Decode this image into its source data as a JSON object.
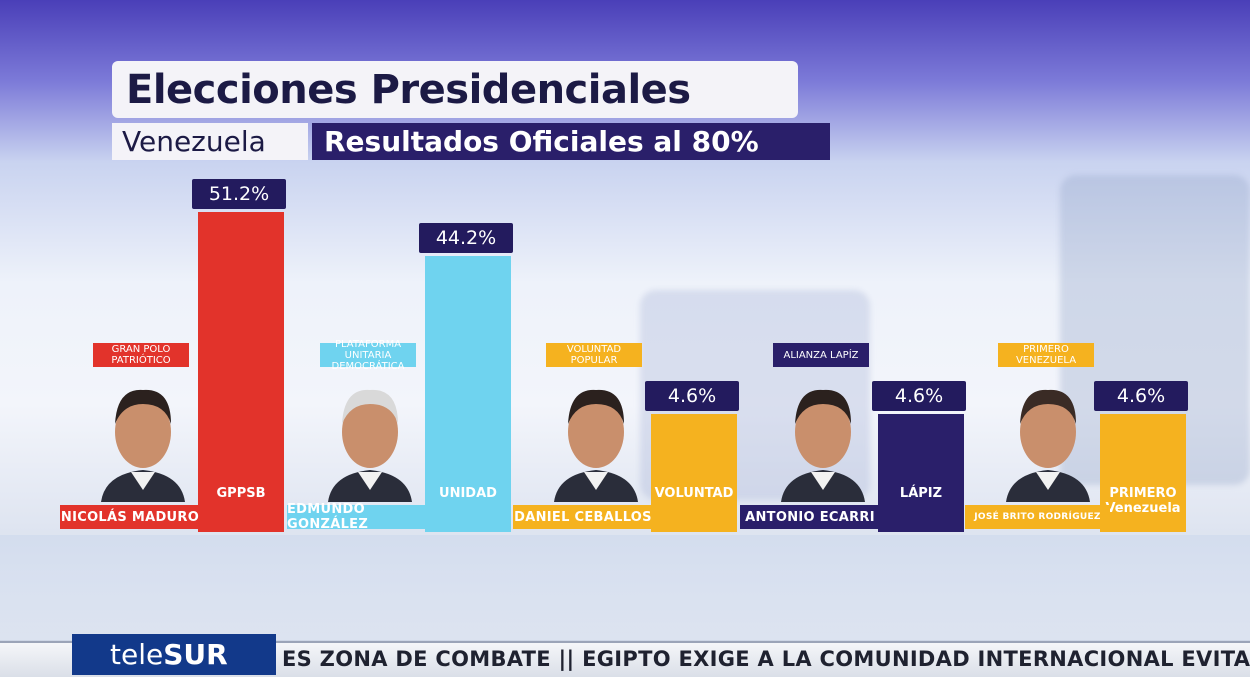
{
  "header": {
    "title": "Elecciones Presidenciales",
    "country": "Venezuela",
    "subtitle": "Resultados Oficiales al 80%"
  },
  "chart_data": {
    "type": "bar",
    "title": "Elecciones Presidenciales",
    "subtitle": "Resultados Oficiales al 80%",
    "categories": [
      "NICOLÁS MADURO",
      "EDMUNDO GONZÁLEZ",
      "DANIEL CEBALLOS",
      "ANTONIO ECARRI",
      "JOSÉ BRITO RODRÍGUEZ"
    ],
    "values": [
      51.2,
      44.2,
      4.6,
      4.6,
      4.6
    ],
    "value_labels": [
      "51.2%",
      "44.2%",
      "4.6%",
      "4.6%",
      "4.6%"
    ],
    "ylim": [
      0,
      60
    ]
  },
  "candidates": [
    {
      "name": "NICOLÁS MADURO",
      "party": "GRAN POLO PATRIÓTICO",
      "logo": "GPPSB",
      "color": "#e2332b",
      "party_color": "#e2332b",
      "name_color": "#e2332b"
    },
    {
      "name": "EDMUNDO GONZÁLEZ",
      "party": "PLATAFORMA UNITARIA DEMOCRÁTICA",
      "logo": "UNIDAD",
      "color": "#6fd3ef",
      "party_color": "#6fd3ef",
      "name_color": "#6fd3ef"
    },
    {
      "name": "DANIEL CEBALLOS",
      "party": "VOLUNTAD POPULAR",
      "logo": "VOLUNTAD",
      "color": "#f5b21f",
      "party_color": "#f5b21f",
      "name_color": "#f5b21f"
    },
    {
      "name": "ANTONIO ECARRI",
      "party": "ALIANZA LAPÍZ",
      "logo": "LÁPIZ",
      "color": "#2a1f6a",
      "party_color": "#2a1f6a",
      "name_color": "#2a1f6a"
    },
    {
      "name": "JOSÉ BRITO RODRÍGUEZ",
      "party": "PRIMERO VENEZUELA",
      "logo": "PRIMERO Venezuela",
      "color": "#f5b21f",
      "party_color": "#f5b21f",
      "name_color": "#f5b21f"
    }
  ],
  "ticker": {
    "brand": "teleSUR",
    "brand_tele": "tele",
    "brand_sur": "SUR",
    "text": "ES ZONA DE COMBATE  ||  EGIPTO EXIGE A LA COMUNIDAD INTERNACIONAL EVITA"
  }
}
